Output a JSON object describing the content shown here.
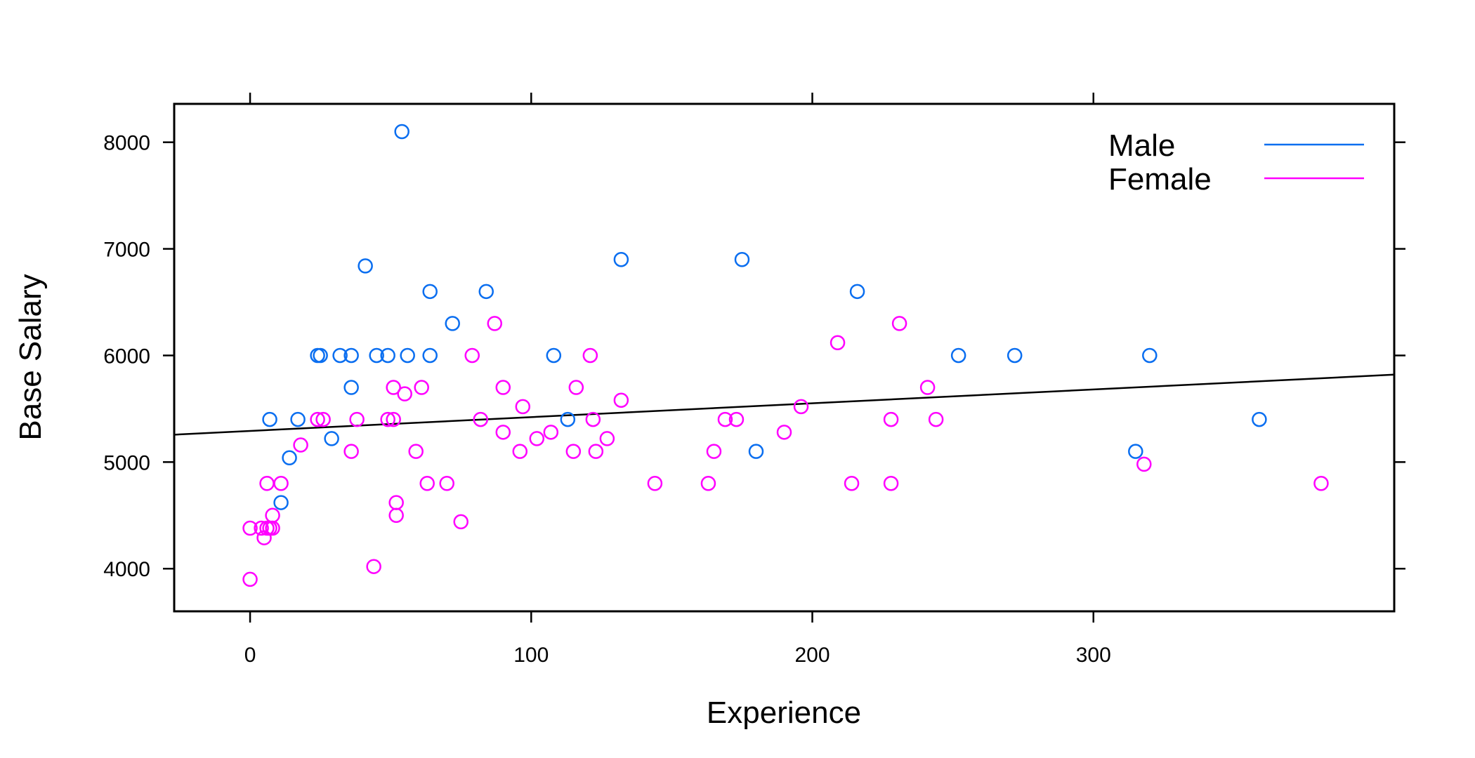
{
  "chart_data": {
    "type": "scatter",
    "xlabel": "Experience",
    "ylabel": "Base Salary",
    "xlim": [
      -27,
      407
    ],
    "ylim": [
      3600,
      8360
    ],
    "xticks": [
      0,
      100,
      200,
      300
    ],
    "yticks": [
      4000,
      5000,
      6000,
      7000,
      8000
    ],
    "grid": false,
    "legend_position": "top-right",
    "regression_line": {
      "x": [
        -27,
        407
      ],
      "y": [
        5257,
        5820
      ],
      "color": "#000000"
    },
    "series": [
      {
        "name": "Male",
        "color": "#0a6ef0",
        "points": [
          [
            7,
            5400
          ],
          [
            11,
            4620
          ],
          [
            14,
            5040
          ],
          [
            17,
            5400
          ],
          [
            24,
            6000
          ],
          [
            25,
            6000
          ],
          [
            29,
            5220
          ],
          [
            32,
            6000
          ],
          [
            36,
            6000
          ],
          [
            36,
            5700
          ],
          [
            41,
            6840
          ],
          [
            45,
            6000
          ],
          [
            49,
            6000
          ],
          [
            54,
            8100
          ],
          [
            56,
            6000
          ],
          [
            64,
            6600
          ],
          [
            64,
            6000
          ],
          [
            72,
            6300
          ],
          [
            84,
            6600
          ],
          [
            108,
            6000
          ],
          [
            113,
            5400
          ],
          [
            132,
            6900
          ],
          [
            175,
            6900
          ],
          [
            180,
            5100
          ],
          [
            216,
            6600
          ],
          [
            252,
            6000
          ],
          [
            272,
            6000
          ],
          [
            315,
            5100
          ],
          [
            320,
            6000
          ],
          [
            359,
            5400
          ]
        ]
      },
      {
        "name": "Female",
        "color": "#ff00ff",
        "points": [
          [
            0,
            3900
          ],
          [
            0,
            4380
          ],
          [
            4,
            4380
          ],
          [
            5,
            4290
          ],
          [
            6,
            4380
          ],
          [
            6,
            4800
          ],
          [
            7,
            4380
          ],
          [
            8,
            4380
          ],
          [
            8,
            4500
          ],
          [
            11,
            4800
          ],
          [
            18,
            5160
          ],
          [
            24,
            5400
          ],
          [
            26,
            5400
          ],
          [
            36,
            5100
          ],
          [
            38,
            5400
          ],
          [
            44,
            4020
          ],
          [
            49,
            5400
          ],
          [
            51,
            5700
          ],
          [
            51,
            5400
          ],
          [
            52,
            4620
          ],
          [
            52,
            4500
          ],
          [
            55,
            5640
          ],
          [
            59,
            5100
          ],
          [
            61,
            5700
          ],
          [
            63,
            4800
          ],
          [
            70,
            4800
          ],
          [
            75,
            4440
          ],
          [
            79,
            6000
          ],
          [
            82,
            5400
          ],
          [
            87,
            6300
          ],
          [
            90,
            5700
          ],
          [
            90,
            5280
          ],
          [
            96,
            5100
          ],
          [
            97,
            5520
          ],
          [
            102,
            5220
          ],
          [
            107,
            5280
          ],
          [
            115,
            5100
          ],
          [
            116,
            5700
          ],
          [
            121,
            6000
          ],
          [
            122,
            5400
          ],
          [
            123,
            5100
          ],
          [
            127,
            5220
          ],
          [
            132,
            5580
          ],
          [
            144,
            4800
          ],
          [
            163,
            4800
          ],
          [
            165,
            5100
          ],
          [
            169,
            5400
          ],
          [
            173,
            5400
          ],
          [
            190,
            5280
          ],
          [
            196,
            5520
          ],
          [
            209,
            6120
          ],
          [
            214,
            4800
          ],
          [
            228,
            5400
          ],
          [
            228,
            4800
          ],
          [
            231,
            6300
          ],
          [
            241,
            5700
          ],
          [
            244,
            5400
          ],
          [
            318,
            4980
          ],
          [
            381,
            4800
          ]
        ]
      }
    ]
  }
}
